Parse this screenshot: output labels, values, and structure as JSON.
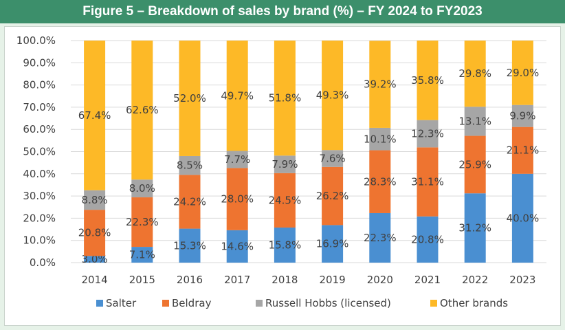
{
  "title": "Figure 5 – Breakdown of sales by brand (%) – FY 2024 to FY2023",
  "colors": {
    "title_bar": "#3c8f6b",
    "background": "#e6f2e8",
    "grid": "#d9d9d9",
    "axis_text": "#404040"
  },
  "chart_data": {
    "type": "bar",
    "stacked": true,
    "title": "",
    "xlabel": "",
    "ylabel": "",
    "ylim": [
      0,
      100
    ],
    "y_ticks": [
      "0.0%",
      "10.0%",
      "20.0%",
      "30.0%",
      "40.0%",
      "50.0%",
      "60.0%",
      "70.0%",
      "80.0%",
      "90.0%",
      "100.0%"
    ],
    "categories": [
      "2014",
      "2015",
      "2016",
      "2017",
      "2018",
      "2019",
      "2020",
      "2021",
      "2022",
      "2023"
    ],
    "grid": true,
    "legend_position": "bottom",
    "series": [
      {
        "name": "Salter",
        "color": "#4a8fd1",
        "values": [
          3.0,
          7.1,
          15.3,
          14.6,
          15.8,
          16.9,
          22.3,
          20.8,
          31.2,
          40.0
        ],
        "labels": [
          "3.0%",
          "7.1%",
          "15.3%",
          "14.6%",
          "15.8%",
          "16.9%",
          "22.3%",
          "20.8%",
          "31.2%",
          "40.0%"
        ]
      },
      {
        "name": "Beldray",
        "color": "#ee7430",
        "values": [
          20.8,
          22.3,
          24.2,
          28.0,
          24.5,
          26.2,
          28.3,
          31.1,
          25.9,
          21.1
        ],
        "labels": [
          "20.8%",
          "22.3%",
          "24.2%",
          "28.0%",
          "24.5%",
          "26.2%",
          "28.3%",
          "31.1%",
          "25.9%",
          "21.1%"
        ]
      },
      {
        "name": "Russell Hobbs (licensed)",
        "color": "#a6a6a6",
        "values": [
          8.8,
          8.0,
          8.5,
          7.7,
          7.9,
          7.6,
          10.1,
          12.3,
          13.1,
          9.9
        ],
        "labels": [
          "8.8%",
          "8.0%",
          "8.5%",
          "7.7%",
          "7.9%",
          "7.6%",
          "10.1%",
          "12.3%",
          "13.1%",
          "9.9%"
        ]
      },
      {
        "name": "Other brands",
        "color": "#fdb927",
        "values": [
          67.4,
          62.6,
          52.0,
          49.7,
          51.8,
          49.3,
          39.2,
          35.8,
          29.8,
          29.0
        ],
        "labels": [
          "67.4%",
          "62.6%",
          "52.0%",
          "49.7%",
          "51.8%",
          "49.3%",
          "39.2%",
          "35.8%",
          "29.8%",
          "29.0%"
        ]
      }
    ]
  }
}
